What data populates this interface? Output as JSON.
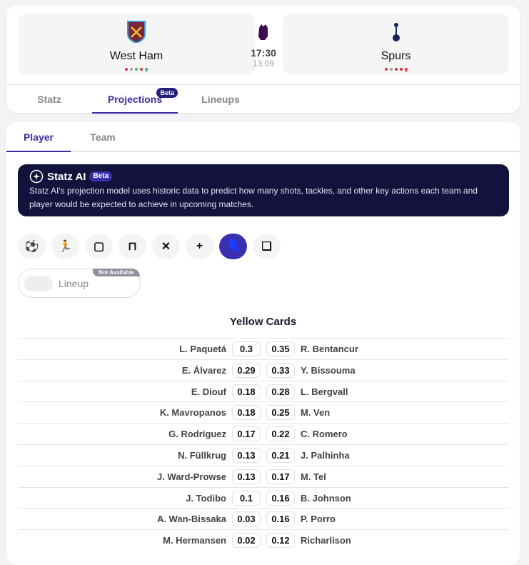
{
  "match": {
    "home": {
      "name": "West Ham",
      "form": [
        "#e0303a",
        "#a0a0a8",
        "#2fbf71",
        "#e0303a",
        "#2fbf71"
      ]
    },
    "away": {
      "name": "Spurs",
      "form": [
        "#e0303a",
        "#a0a0a8",
        "#e0303a",
        "#e0303a",
        "#e0303a"
      ]
    },
    "time": "17:30",
    "date": "13.09",
    "league_icon": "premier-league-icon"
  },
  "main_tabs": [
    {
      "label": "Statz"
    },
    {
      "label": "Projections",
      "badge": "Beta"
    },
    {
      "label": "Lineups"
    }
  ],
  "sub_tabs": [
    {
      "label": "Player"
    },
    {
      "label": "Team"
    }
  ],
  "banner": {
    "title": "Statz AI",
    "badge": "Beta",
    "description": "Statz AI's projection model uses historic data to predict how many shots, tackles, and other key actions each team and player would be expected to achieve in upcoming matches."
  },
  "stat_icons": [
    "football-icon",
    "tackle-icon",
    "goal-icon",
    "goalkeeper-icon",
    "foul-committed-icon",
    "foul-won-icon",
    "yellow-cards-icon",
    "cards-icon"
  ],
  "toggle": {
    "label": "Lineup",
    "badge": "Not Available"
  },
  "accent": "#3a2f9e",
  "table": {
    "title": "Yellow Cards",
    "rows": [
      {
        "home": "L. Paquetá",
        "hv": "0.3",
        "av": "0.35",
        "away": "R. Bentancur"
      },
      {
        "home": "E. Álvarez",
        "hv": "0.29",
        "av": "0.33",
        "away": "Y. Bissouma"
      },
      {
        "home": "E. Diouf",
        "hv": "0.18",
        "av": "0.28",
        "away": "L. Bergvall"
      },
      {
        "home": "K. Mavropanos",
        "hv": "0.18",
        "av": "0.25",
        "away": "M. Ven"
      },
      {
        "home": "G. Rodríguez",
        "hv": "0.17",
        "av": "0.22",
        "away": "C. Romero"
      },
      {
        "home": "N. Füllkrug",
        "hv": "0.13",
        "av": "0.21",
        "away": "J. Palhinha"
      },
      {
        "home": "J. Ward-Prowse",
        "hv": "0.13",
        "av": "0.17",
        "away": "M. Tel"
      },
      {
        "home": "J. Todibo",
        "hv": "0.1",
        "av": "0.16",
        "away": "B. Johnson"
      },
      {
        "home": "A. Wan-Bissaka",
        "hv": "0.03",
        "av": "0.16",
        "away": "P. Porro"
      },
      {
        "home": "M. Hermansen",
        "hv": "0.02",
        "av": "0.12",
        "away": "Richarlison"
      }
    ]
  }
}
